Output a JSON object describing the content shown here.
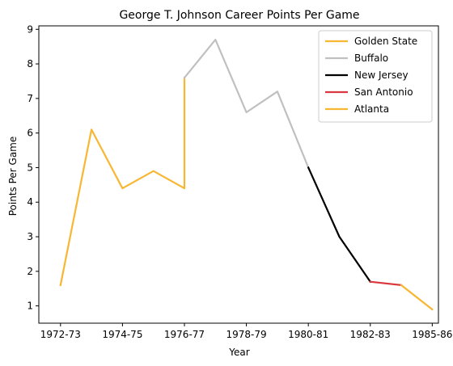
{
  "chart_data": {
    "type": "line",
    "title": "George T. Johnson Career Points Per Game",
    "xlabel": "Year",
    "ylabel": "Points Per Game",
    "x_tick_labels": [
      "1972-73",
      "1974-75",
      "1976-77",
      "1978-79",
      "1980-81",
      "1982-83",
      "1985-86"
    ],
    "x_tick_indices": [
      0,
      2,
      4,
      6,
      8,
      10,
      12
    ],
    "y_ticks": [
      1,
      2,
      3,
      4,
      5,
      6,
      7,
      8,
      9
    ],
    "xlim": [
      -0.7,
      12.2
    ],
    "ylim": [
      0.5,
      9.1
    ],
    "legend_position": "upper right",
    "series": [
      {
        "name": "Golden State",
        "color": "#f7b733",
        "x": [
          0,
          1,
          2,
          3,
          4,
          4
        ],
        "y": [
          1.6,
          6.1,
          4.4,
          4.9,
          4.4,
          7.6
        ]
      },
      {
        "name": "Buffalo",
        "color": "#c0c0c0",
        "x": [
          4,
          5,
          6,
          7,
          8
        ],
        "y": [
          7.6,
          8.7,
          6.6,
          7.2,
          5.0
        ]
      },
      {
        "name": "New Jersey",
        "color": "#000000",
        "x": [
          8,
          9,
          10
        ],
        "y": [
          5.0,
          3.0,
          1.7
        ]
      },
      {
        "name": "San Antonio",
        "color": "#d9393e",
        "x": [
          10,
          11
        ],
        "y": [
          1.7,
          1.6
        ]
      },
      {
        "name": "Atlanta",
        "color": "#f7b733",
        "x": [
          11,
          12
        ],
        "y": [
          1.6,
          0.9
        ]
      }
    ]
  }
}
